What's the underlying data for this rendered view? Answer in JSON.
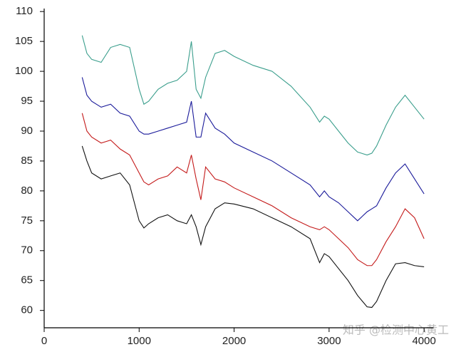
{
  "chart_data": {
    "type": "line",
    "x": [
      400,
      450,
      500,
      600,
      700,
      800,
      900,
      1000,
      1050,
      1100,
      1200,
      1300,
      1400,
      1500,
      1550,
      1600,
      1650,
      1700,
      1800,
      1900,
      2000,
      2200,
      2400,
      2600,
      2800,
      2900,
      2950,
      3000,
      3100,
      3200,
      3300,
      3400,
      3450,
      3500,
      3600,
      3700,
      3800,
      3900,
      4000
    ],
    "series": [
      {
        "color": "#3a9e8c",
        "values": [
          106,
          103,
          102,
          101.5,
          104,
          104.5,
          104,
          97,
          94.5,
          95,
          97,
          98,
          98.5,
          100,
          105,
          97,
          95.5,
          99,
          103,
          103.5,
          102.5,
          101,
          100,
          97.5,
          94,
          91.5,
          92.5,
          92,
          90,
          88,
          86.5,
          86,
          86.3,
          87.5,
          91,
          94,
          96,
          94,
          92
        ]
      },
      {
        "color": "#1a1a9a",
        "values": [
          99,
          96,
          95,
          94,
          94.5,
          93,
          92.5,
          90,
          89.5,
          89.5,
          90,
          90.5,
          91,
          91.5,
          95,
          89,
          89,
          93,
          90.5,
          89.5,
          88,
          86.5,
          85,
          83,
          81,
          79,
          80,
          79,
          78,
          76.5,
          75,
          76.5,
          77,
          77.5,
          80.5,
          83,
          84.5,
          82,
          79.5
        ]
      },
      {
        "color": "#c41a1a",
        "values": [
          93,
          90,
          89,
          88,
          88.5,
          87,
          86,
          83,
          81.5,
          81,
          82,
          82.5,
          84,
          83,
          86,
          82,
          78.5,
          84,
          82,
          81.5,
          80.5,
          79,
          77.5,
          75.5,
          74,
          73.5,
          74,
          73.5,
          72,
          70.5,
          68.5,
          67.5,
          67.5,
          68.5,
          71.5,
          74,
          77,
          75.5,
          72
        ]
      },
      {
        "color": "#111111",
        "values": [
          87.5,
          85,
          83,
          82,
          82.5,
          83,
          81,
          75,
          73.8,
          74.5,
          75.5,
          76,
          75,
          74.5,
          76,
          74,
          71,
          74,
          77,
          78,
          77.8,
          77,
          75.5,
          74,
          72,
          68,
          69.5,
          69,
          67,
          65,
          62.5,
          60.6,
          60.5,
          61.5,
          65,
          67.8,
          68,
          67.5,
          67.3
        ]
      }
    ],
    "xlim": [
      0,
      4100
    ],
    "ylim": [
      57.1,
      110.5
    ],
    "xticks": [
      0,
      1000,
      2000,
      3000,
      4000
    ],
    "yticks": [
      60,
      65,
      70,
      75,
      80,
      85,
      90,
      95,
      100,
      105,
      110
    ],
    "grid": false,
    "watermark": "知乎 @检测中心黄工"
  }
}
